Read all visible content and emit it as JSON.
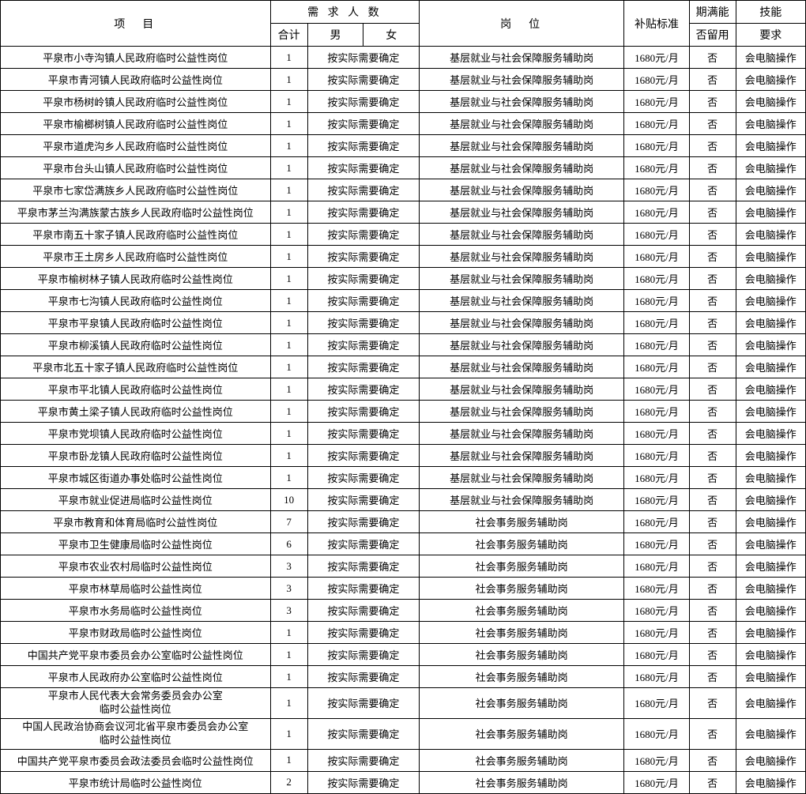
{
  "headers": {
    "project": "项　目",
    "demand": "需 求 人 数",
    "total": "合计",
    "male": "男",
    "female": "女",
    "position": "岗　位",
    "subsidy": "补贴标准",
    "retain_top": "期满能",
    "retain_bottom": "否留用",
    "skill_top": "技能",
    "skill_bottom": "要求"
  },
  "common": {
    "gender_note": "按实际需要确定",
    "position1": "基层就业与社会保障服务辅助岗",
    "position2": "社会事务服务辅助岗",
    "subsidy": "1680元/月",
    "retain": "否",
    "skill": "会电脑操作"
  },
  "rows": [
    {
      "project": "平泉市小寺沟镇人民政府临时公益性岗位",
      "total": "1",
      "pos": 1
    },
    {
      "project": "平泉市青河镇人民政府临时公益性岗位",
      "total": "1",
      "pos": 1
    },
    {
      "project": "平泉市杨树岭镇人民政府临时公益性岗位",
      "total": "1",
      "pos": 1
    },
    {
      "project": "平泉市榆榔树镇人民政府临时公益性岗位",
      "total": "1",
      "pos": 1
    },
    {
      "project": "平泉市道虎沟乡人民政府临时公益性岗位",
      "total": "1",
      "pos": 1
    },
    {
      "project": "平泉市台头山镇人民政府临时公益性岗位",
      "total": "1",
      "pos": 1
    },
    {
      "project": "平泉市七家岱满族乡人民政府临时公益性岗位",
      "total": "1",
      "pos": 1
    },
    {
      "project": "平泉市茅兰沟满族蒙古族乡人民政府临时公益性岗位",
      "total": "1",
      "pos": 1
    },
    {
      "project": "平泉市南五十家子镇人民政府临时公益性岗位",
      "total": "1",
      "pos": 1
    },
    {
      "project": "平泉市王土房乡人民政府临时公益性岗位",
      "total": "1",
      "pos": 1
    },
    {
      "project": "平泉市榆树林子镇人民政府临时公益性岗位",
      "total": "1",
      "pos": 1
    },
    {
      "project": "平泉市七沟镇人民政府临时公益性岗位",
      "total": "1",
      "pos": 1
    },
    {
      "project": "平泉市平泉镇人民政府临时公益性岗位",
      "total": "1",
      "pos": 1
    },
    {
      "project": "平泉市柳溪镇人民政府临时公益性岗位",
      "total": "1",
      "pos": 1
    },
    {
      "project": "平泉市北五十家子镇人民政府临时公益性岗位",
      "total": "1",
      "pos": 1
    },
    {
      "project": "平泉市平北镇人民政府临时公益性岗位",
      "total": "1",
      "pos": 1
    },
    {
      "project": "平泉市黄土梁子镇人民政府临时公益性岗位",
      "total": "1",
      "pos": 1
    },
    {
      "project": "平泉市党坝镇人民政府临时公益性岗位",
      "total": "1",
      "pos": 1
    },
    {
      "project": "平泉市卧龙镇人民政府临时公益性岗位",
      "total": "1",
      "pos": 1
    },
    {
      "project": "平泉市城区街道办事处临时公益性岗位",
      "total": "1",
      "pos": 1
    },
    {
      "project": "平泉市就业促进局临时公益性岗位",
      "total": "10",
      "pos": 1
    },
    {
      "project": "平泉市教育和体育局临时公益性岗位",
      "total": "7",
      "pos": 2
    },
    {
      "project": "平泉市卫生健康局临时公益性岗位",
      "total": "6",
      "pos": 2
    },
    {
      "project": "平泉市农业农村局临时公益性岗位",
      "total": "3",
      "pos": 2
    },
    {
      "project": "平泉市林草局临时公益性岗位",
      "total": "3",
      "pos": 2
    },
    {
      "project": "平泉市水务局临时公益性岗位",
      "total": "3",
      "pos": 2
    },
    {
      "project": "平泉市财政局临时公益性岗位",
      "total": "1",
      "pos": 2
    },
    {
      "project": "中国共产党平泉市委员会办公室临时公益性岗位",
      "total": "1",
      "pos": 2
    },
    {
      "project": "平泉市人民政府办公室临时公益性岗位",
      "total": "1",
      "pos": 2
    },
    {
      "project": "平泉市人民代表大会常务委员会办公室\n临时公益性岗位",
      "total": "1",
      "pos": 2,
      "multiline": true
    },
    {
      "project": "中国人民政治协商会议河北省平泉市委员会办公室\n临时公益性岗位",
      "total": "1",
      "pos": 2,
      "multiline": true
    },
    {
      "project": "中国共产党平泉市委员会政法委员会临时公益性岗位",
      "total": "1",
      "pos": 2
    },
    {
      "project": "平泉市统计局临时公益性岗位",
      "total": "2",
      "pos": 2
    }
  ]
}
